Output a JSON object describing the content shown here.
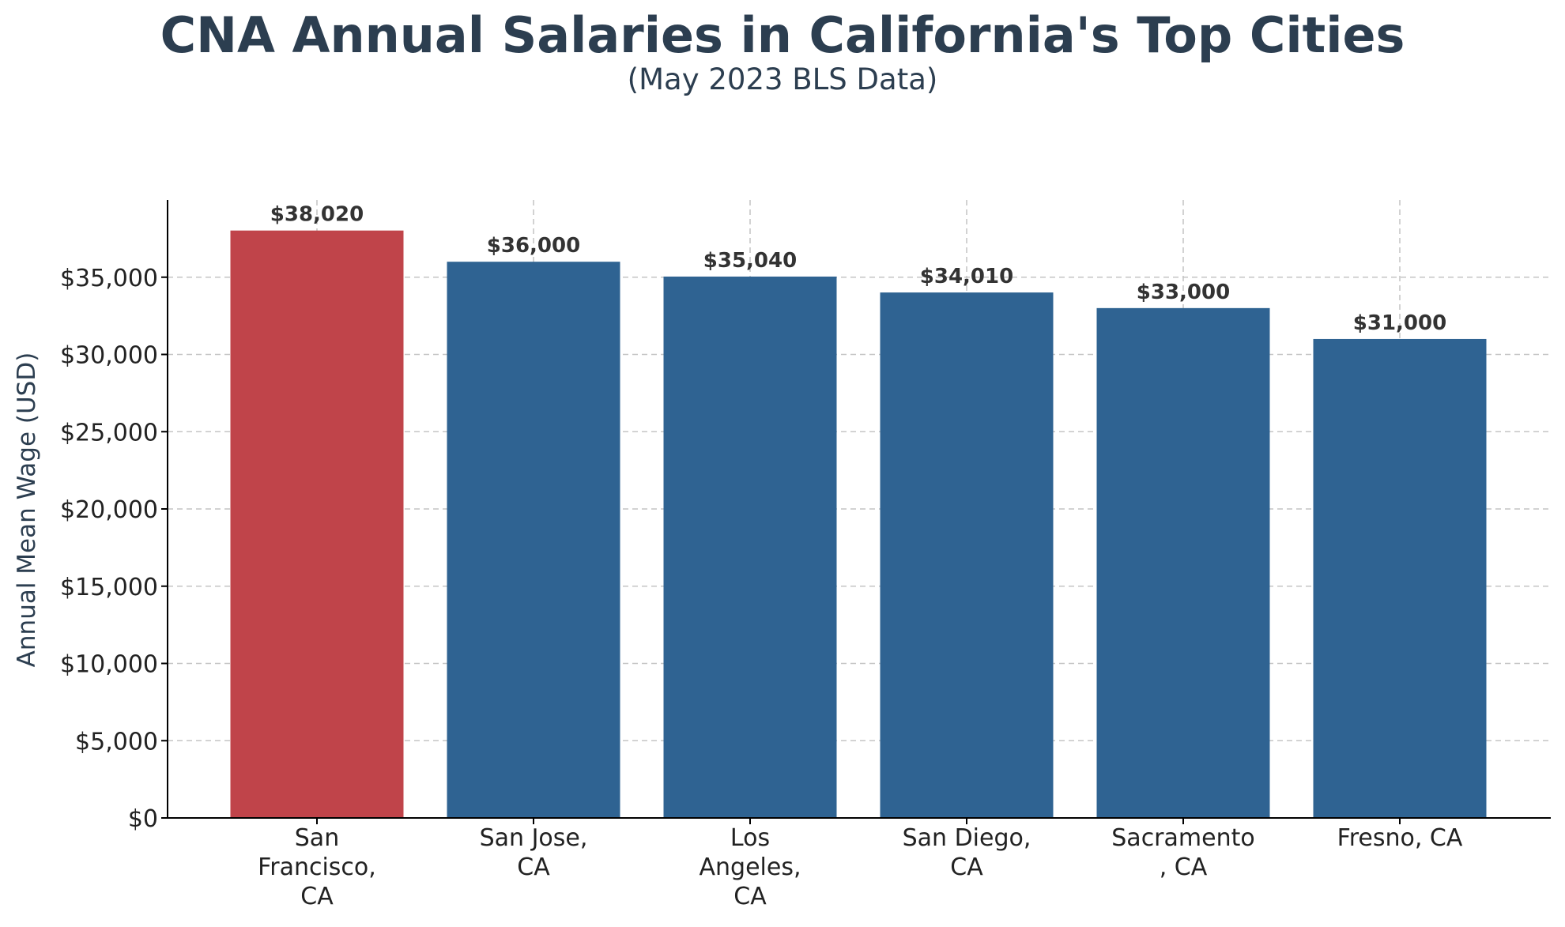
{
  "chart_data": {
    "type": "bar",
    "title": "CNA Annual Salaries in California's Top Cities",
    "subtitle": "(May 2023 BLS Data)",
    "xlabel": "",
    "ylabel": "Annual Mean Wage (USD)",
    "ylim": [
      0,
      40000
    ],
    "yticks": [
      0,
      5000,
      10000,
      15000,
      20000,
      25000,
      30000,
      35000
    ],
    "ytick_labels": [
      "$0",
      "$5,000",
      "$10,000",
      "$15,000",
      "$20,000",
      "$25,000",
      "$30,000",
      "$35,000"
    ],
    "grid": true,
    "categories": [
      "San Francisco, CA",
      "San Jose, CA",
      "Los Angeles, CA",
      "San Diego, CA",
      "Sacramento, CA",
      "Fresno, CA"
    ],
    "category_label_lines": [
      [
        "San",
        "Francisco,",
        "CA"
      ],
      [
        "San Jose,",
        "CA"
      ],
      [
        "Los",
        "Angeles,",
        "CA"
      ],
      [
        "San Diego,",
        "CA"
      ],
      [
        "Sacramento",
        ", CA"
      ],
      [
        "Fresno, CA"
      ]
    ],
    "values": [
      38020,
      36000,
      35040,
      34010,
      33000,
      31000
    ],
    "data_labels": [
      "$38,020",
      "$36,000",
      "$35,040",
      "$34,010",
      "$33,000",
      "$31,000"
    ],
    "colors": [
      "#c0444a",
      "#2f6392",
      "#2f6392",
      "#2f6392",
      "#2f6392",
      "#2f6392"
    ]
  }
}
